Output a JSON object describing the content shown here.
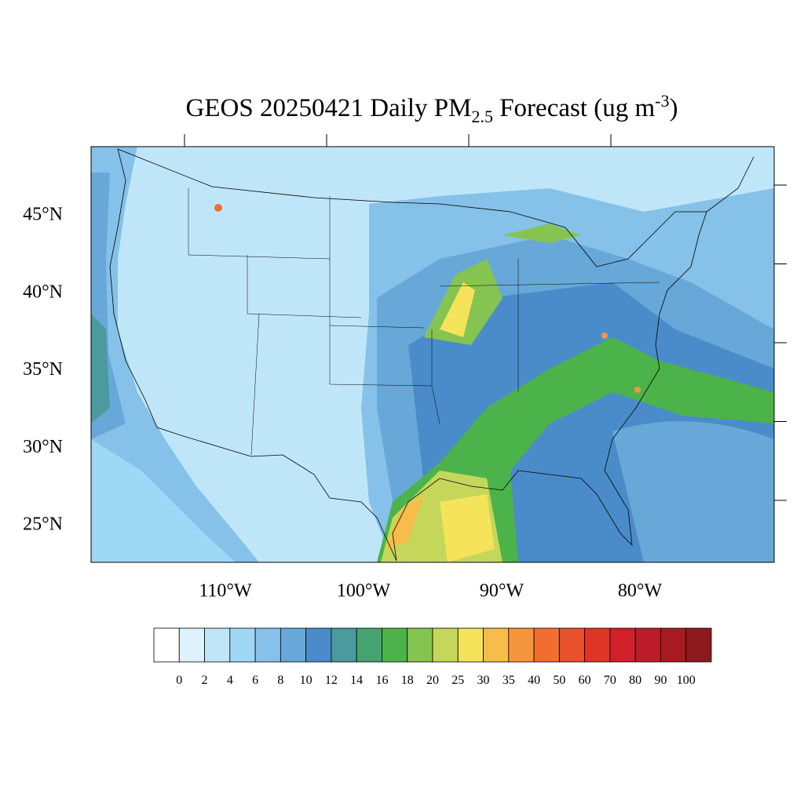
{
  "chart_data": {
    "type": "map",
    "title": {
      "main": "GEOS 20250421 Daily PM",
      "sub": "2.5",
      "rest": " Forecast (ug m",
      "sup": "-3",
      "end": ")"
    },
    "yticks": [
      {
        "value": 45,
        "label": "45°N"
      },
      {
        "value": 40,
        "label": "40°N"
      },
      {
        "value": 35,
        "label": "35°N"
      },
      {
        "value": 30,
        "label": "30°N"
      },
      {
        "value": 25,
        "label": "25°N"
      }
    ],
    "xticks": [
      {
        "value": -110,
        "label": "110°W"
      },
      {
        "value": -100,
        "label": "100°W"
      },
      {
        "value": -90,
        "label": "90°W"
      },
      {
        "value": -80,
        "label": "80°W"
      }
    ],
    "colorbar": {
      "levels": [
        0,
        2,
        4,
        6,
        8,
        10,
        12,
        14,
        16,
        18,
        20,
        25,
        30,
        35,
        40,
        50,
        60,
        70,
        80,
        90,
        100
      ],
      "colors": [
        "#ffffff",
        "#dff2fb",
        "#bfe6f8",
        "#9fd8f4",
        "#85c1e8",
        "#68a8d9",
        "#4a8cc9",
        "#4a9a9e",
        "#46a36f",
        "#4cb34a",
        "#85c451",
        "#c5d75a",
        "#f5e35a",
        "#f6bd4a",
        "#f5963e",
        "#f26e30",
        "#e9502c",
        "#de3527",
        "#d21f2a",
        "#bc1c27",
        "#a71a22",
        "#8e1a1e"
      ]
    }
  }
}
